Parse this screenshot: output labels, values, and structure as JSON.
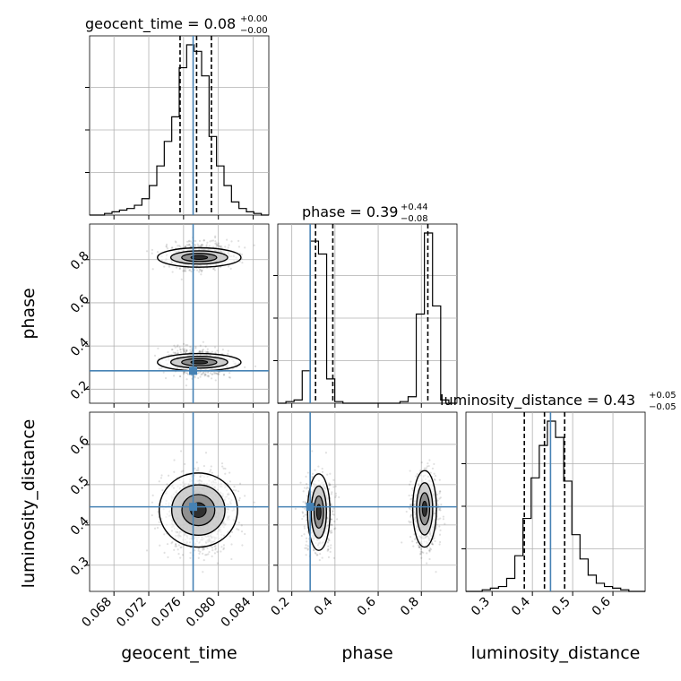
{
  "chart_data": {
    "type": "corner",
    "parameters": [
      "geocent_time",
      "phase",
      "luminosity_distance"
    ],
    "truths": {
      "geocent_time": 0.0771,
      "phase": 0.285,
      "luminosity_distance": 0.445
    },
    "ranges": {
      "geocent_time": [
        0.0652,
        0.0858
      ],
      "phase": [
        0.135,
        0.965
      ],
      "luminosity_distance": [
        0.235,
        0.68
      ]
    },
    "ticks": {
      "geocent_time": [
        "0.068",
        "0.072",
        "0.076",
        "0.080",
        "0.084"
      ],
      "phase_x": [
        "0.2",
        "0.4",
        "0.6",
        "0.8"
      ],
      "phase_y": [
        "0.2",
        "0.4",
        "0.6",
        "0.8"
      ],
      "luminosity_distance_x": [
        "0.3",
        "0.4",
        "0.5",
        "0.6"
      ],
      "luminosity_distance_y": [
        "0.3",
        "0.4",
        "0.5",
        "0.6"
      ]
    },
    "axis_labels": {
      "x": [
        "geocent_time",
        "phase",
        "luminosity_distance"
      ],
      "y": [
        "phase",
        "luminosity_distance"
      ]
    },
    "titles": [
      {
        "text": "geocent_time = 0.08",
        "up": "+0.00",
        "down": "−0.00"
      },
      {
        "text": "phase = 0.39",
        "up": "+0.44",
        "down": "−0.08"
      },
      {
        "text": "luminosity_distance = 0.43",
        "up": "+0.05",
        "down": "−0.05"
      }
    ],
    "quantiles": {
      "geocent_time": [
        0.0756,
        0.0775,
        0.0792
      ],
      "phase": [
        0.31,
        0.39,
        0.83
      ],
      "luminosity_distance": [
        0.38,
        0.43,
        0.48
      ]
    },
    "histograms": {
      "geocent_time": {
        "range": [
          0.0652,
          0.0858
        ],
        "counts": [
          0,
          0,
          1,
          2,
          3,
          4,
          6,
          10,
          18,
          30,
          45,
          60,
          90,
          104,
          100,
          85,
          48,
          30,
          18,
          8,
          4,
          2,
          1,
          0
        ]
      },
      "phase": {
        "range": [
          0.135,
          0.965
        ],
        "counts": [
          0,
          1,
          2,
          20,
          100,
          92,
          15,
          1,
          0,
          0,
          0,
          0,
          0,
          0,
          0,
          1,
          4,
          55,
          105,
          60,
          2,
          0
        ]
      },
      "luminosity_distance": {
        "range": [
          0.235,
          0.68
        ],
        "counts": [
          0,
          0,
          1,
          2,
          3,
          8,
          22,
          45,
          70,
          90,
          105,
          95,
          68,
          35,
          20,
          10,
          5,
          3,
          2,
          1,
          0,
          0
        ]
      }
    },
    "grid": true
  }
}
